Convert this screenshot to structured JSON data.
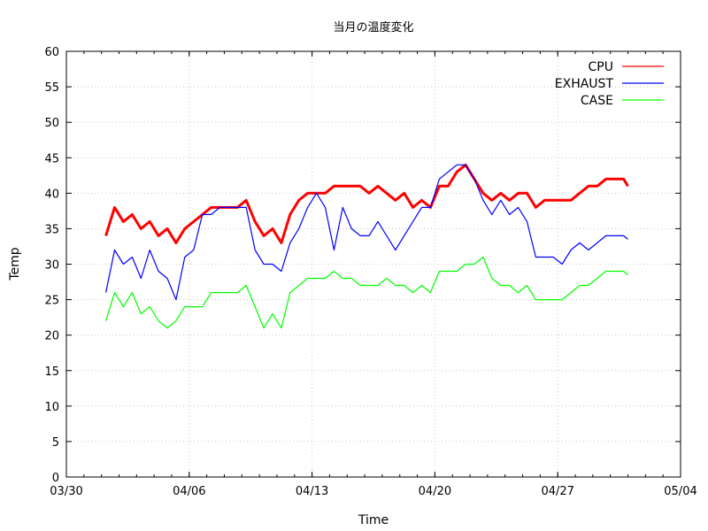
{
  "chart_data": {
    "type": "line",
    "title": "当月の温度変化",
    "xlabel": "Time",
    "ylabel": "Temp",
    "ylim": [
      0,
      60
    ],
    "xlim": [
      "03/30",
      "05/04"
    ],
    "xticks": [
      "03/30",
      "04/06",
      "04/13",
      "04/20",
      "04/27",
      "05/04"
    ],
    "yticks": [
      0,
      5,
      10,
      15,
      20,
      25,
      30,
      35,
      40,
      45,
      50,
      55,
      60
    ],
    "grid": true,
    "legend_position": "top-right",
    "x": [
      "04/01 06:00",
      "04/01 18:00",
      "04/02 06:00",
      "04/02 18:00",
      "04/03 06:00",
      "04/03 18:00",
      "04/04 06:00",
      "04/04 18:00",
      "04/05 06:00",
      "04/05 18:00",
      "04/06 06:00",
      "04/06 18:00",
      "04/07 06:00",
      "04/07 18:00",
      "04/08 06:00",
      "04/08 18:00",
      "04/09 06:00",
      "04/09 18:00",
      "04/10 06:00",
      "04/10 18:00",
      "04/11 06:00",
      "04/11 18:00",
      "04/12 06:00",
      "04/12 18:00",
      "04/13 06:00",
      "04/13 18:00",
      "04/14 06:00",
      "04/14 18:00",
      "04/15 06:00",
      "04/15 18:00",
      "04/16 06:00",
      "04/16 18:00",
      "04/17 06:00",
      "04/17 18:00",
      "04/18 06:00",
      "04/18 18:00",
      "04/19 06:00",
      "04/19 18:00",
      "04/20 06:00",
      "04/20 18:00",
      "04/21 06:00",
      "04/21 18:00",
      "04/22 06:00",
      "04/22 18:00",
      "04/23 06:00",
      "04/23 18:00",
      "04/24 06:00",
      "04/24 18:00",
      "04/25 06:00",
      "04/25 18:00",
      "04/26 06:00",
      "04/26 18:00",
      "04/27 06:00",
      "04/27 18:00",
      "04/28 06:00",
      "04/28 18:00",
      "04/29 06:00",
      "04/29 18:00",
      "04/30 06:00",
      "04/30 18:00",
      "05/01 00:00"
    ],
    "series": [
      {
        "name": "CPU",
        "color": "#ff0000",
        "values": [
          34,
          38,
          36,
          37,
          35,
          36,
          34,
          35,
          33,
          35,
          36,
          37,
          38,
          38,
          38,
          38,
          39,
          36,
          34,
          35,
          33,
          37,
          39,
          40,
          40,
          40,
          41,
          41,
          41,
          41,
          40,
          41,
          40,
          39,
          40,
          38,
          39,
          38,
          41,
          41,
          43,
          44,
          42,
          40,
          39,
          40,
          39,
          40,
          40,
          38,
          39,
          39,
          39,
          39,
          40,
          41,
          41,
          42,
          42,
          42,
          41
        ]
      },
      {
        "name": "EXHAUST",
        "color": "#0000ff",
        "values": [
          26,
          32,
          30,
          31,
          28,
          32,
          29,
          28,
          25,
          31,
          32,
          37,
          37,
          38,
          38,
          38,
          38,
          32,
          30,
          30,
          29,
          33,
          35,
          38,
          40,
          38,
          32,
          38,
          35,
          34,
          34,
          36,
          34,
          32,
          34,
          36,
          38,
          38,
          42,
          43,
          44,
          44,
          42,
          39,
          37,
          39,
          37,
          38,
          36,
          31,
          31,
          31,
          30,
          32,
          33,
          32,
          33,
          34,
          34,
          34,
          33.5
        ]
      },
      {
        "name": "CASE",
        "color": "#00ff00",
        "values": [
          22,
          26,
          24,
          26,
          23,
          24,
          22,
          21,
          22,
          24,
          24,
          24,
          26,
          26,
          26,
          26,
          27,
          24,
          21,
          23,
          21,
          26,
          27,
          28,
          28,
          28,
          29,
          28,
          28,
          27,
          27,
          27,
          28,
          27,
          27,
          26,
          27,
          26,
          29,
          29,
          29,
          30,
          30,
          31,
          28,
          27,
          27,
          26,
          27,
          25,
          25,
          25,
          25,
          26,
          27,
          27,
          28,
          29,
          29,
          29,
          28.5
        ]
      }
    ]
  }
}
